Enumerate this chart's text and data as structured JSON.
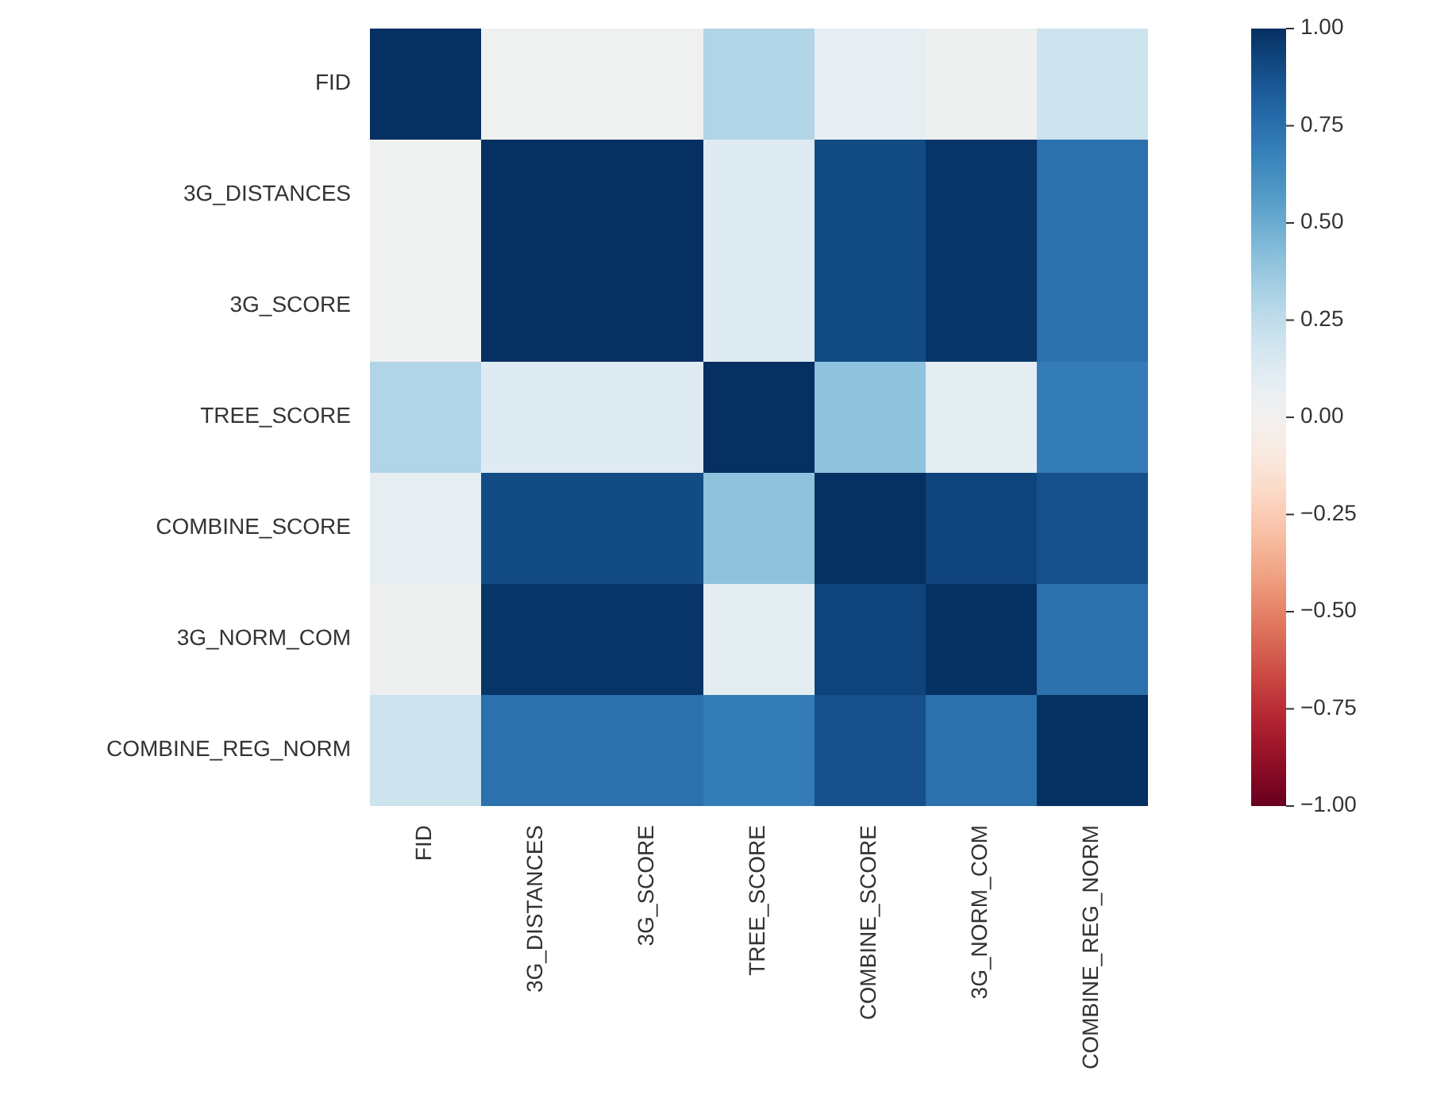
{
  "chart_data": {
    "type": "heatmap",
    "categories": [
      "FID",
      "3G_DISTANCES",
      "3G_SCORE",
      "TREE_SCORE",
      "COMBINE_SCORE",
      "3G_NORM_COM",
      "COMBINE_REG_NORM"
    ],
    "y_categories": [
      "FID",
      "3G_DISTANCES",
      "3G_SCORE",
      "TREE_SCORE",
      "COMBINE_SCORE",
      "3G_NORM_COM",
      "COMBINE_REG_NORM"
    ],
    "cells": [
      [
        1,
        0.02,
        0.02,
        0.3,
        0.08,
        0.03,
        0.2
      ],
      [
        0.02,
        1,
        1,
        0.12,
        0.9,
        0.98,
        0.75
      ],
      [
        0.02,
        1,
        1,
        0.12,
        0.9,
        0.98,
        0.75
      ],
      [
        0.3,
        0.12,
        0.12,
        1,
        0.4,
        0.1,
        0.7
      ],
      [
        0.08,
        0.9,
        0.9,
        0.4,
        1,
        0.93,
        0.88
      ],
      [
        0.03,
        0.98,
        0.98,
        0.1,
        0.93,
        1,
        0.75
      ],
      [
        0.2,
        0.75,
        0.75,
        0.7,
        0.88,
        0.75,
        1
      ]
    ],
    "clim": [
      -1,
      1
    ],
    "cticks": [
      {
        "value": 1,
        "label": "1.00"
      },
      {
        "value": 0.75,
        "label": "0.75"
      },
      {
        "value": 0.5,
        "label": "0.50"
      },
      {
        "value": 0.25,
        "label": "0.25"
      },
      {
        "value": 0,
        "label": "0.00"
      },
      {
        "value": -0.25,
        "label": "−0.25"
      },
      {
        "value": -0.5,
        "label": "−0.50"
      },
      {
        "value": -0.75,
        "label": "−0.75"
      },
      {
        "value": -1,
        "label": "−1.00"
      }
    ]
  }
}
